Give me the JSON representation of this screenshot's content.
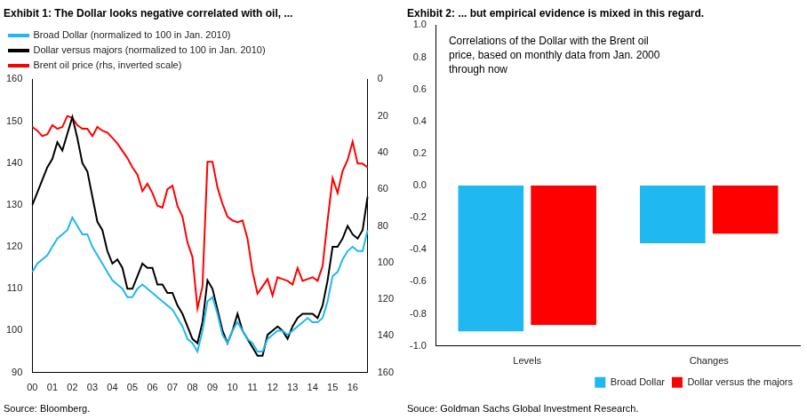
{
  "chart_data": [
    {
      "type": "line",
      "title": "Exhibit 1: The Dollar looks negative correlated with oil, ...",
      "source": "Source: Bloomberg.",
      "categories": [
        "00",
        null,
        null,
        null,
        "01",
        null,
        null,
        null,
        "02",
        null,
        null,
        null,
        "03",
        null,
        null,
        null,
        "04",
        null,
        null,
        null,
        "05",
        null,
        null,
        null,
        "06",
        null,
        null,
        null,
        "07",
        null,
        null,
        null,
        "08",
        null,
        null,
        null,
        "09",
        null,
        null,
        null,
        "10",
        null,
        null,
        null,
        "11",
        null,
        null,
        null,
        "12",
        null,
        null,
        null,
        "13",
        null,
        null,
        null,
        "14",
        null,
        null,
        null,
        "15",
        null,
        null,
        null,
        "16",
        null,
        null,
        null
      ],
      "series": [
        {
          "name": "Broad Dollar (normalized to 100 in Jan. 2010)",
          "color": "#1fb8f0",
          "axis": "y",
          "values": [
            114,
            116,
            117,
            118,
            120,
            122,
            123,
            124,
            127,
            125,
            123,
            123,
            120,
            118,
            116,
            114,
            112,
            111,
            110,
            108,
            108,
            110,
            111,
            110,
            109,
            108,
            107,
            106,
            105,
            103,
            101,
            98,
            97,
            95,
            100,
            107,
            108,
            104,
            99,
            97,
            100,
            102,
            100,
            98,
            97,
            95,
            95,
            98,
            99,
            100,
            100,
            99,
            100,
            101,
            102,
            103,
            102,
            102,
            103,
            107,
            113,
            114,
            117,
            119,
            120,
            119,
            119,
            124
          ]
        },
        {
          "name": "Dollar versus majors (normalized to 100 in Jan. 2010)",
          "color": "#000000",
          "axis": "y",
          "values": [
            130,
            133,
            136,
            139,
            141,
            145,
            143,
            147,
            151,
            146,
            140,
            138,
            132,
            126,
            124,
            119,
            116,
            117,
            115,
            110,
            110,
            113,
            116,
            115,
            115,
            111,
            111,
            109,
            109,
            106,
            104,
            101,
            98,
            97,
            102,
            112,
            110,
            105,
            100,
            97,
            100,
            104,
            100,
            98,
            96,
            94,
            94,
            99,
            100,
            101,
            100,
            98,
            101,
            103,
            104,
            104,
            104,
            103,
            106,
            112,
            120,
            120,
            122,
            125,
            123,
            122,
            124,
            132
          ]
        },
        {
          "name": "Brent oil price (rhs, inverted scale)",
          "color": "#ff0000",
          "axis": "y2",
          "values": [
            26,
            28,
            31,
            30,
            25,
            27,
            26,
            20,
            21,
            25,
            27,
            27,
            31,
            26,
            28,
            29,
            32,
            35,
            39,
            43,
            48,
            52,
            61,
            57,
            62,
            69,
            70,
            60,
            58,
            69,
            75,
            89,
            97,
            125,
            113,
            45,
            45,
            59,
            68,
            75,
            77,
            78,
            77,
            87,
            105,
            117,
            113,
            109,
            118,
            108,
            109,
            110,
            112,
            103,
            110,
            109,
            108,
            110,
            102,
            77,
            54,
            62,
            50,
            44,
            34,
            46,
            46,
            48
          ]
        }
      ],
      "ylim": [
        90,
        160
      ],
      "yticks": [
        90,
        100,
        110,
        120,
        130,
        140,
        150,
        160
      ],
      "y2lim": [
        160,
        0
      ],
      "y2ticks": [
        0,
        20,
        40,
        60,
        80,
        100,
        120,
        140,
        160
      ],
      "grid": false,
      "legend": "upper left"
    },
    {
      "type": "bar",
      "title": "Exhibit 2: ... but empirical evidence is mixed in this regard.",
      "source": "Souce: Goldman Sachs Global Investment Research.",
      "annotation": [
        "Correlations of the Dollar with the Brent oil",
        "price, based on monthly data from Jan. 2000",
        "through now"
      ],
      "categories": [
        "Levels",
        "Changes"
      ],
      "series": [
        {
          "name": "Broad Dollar",
          "color": "#1fb8f0",
          "values": [
            -0.91,
            -0.36
          ]
        },
        {
          "name": "Dollar versus the majors",
          "color": "#ff0000",
          "values": [
            -0.87,
            -0.3
          ]
        }
      ],
      "ylim": [
        -1,
        1
      ],
      "yticks": [
        {
          "value": -1,
          "label": "-1.0"
        },
        {
          "value": -0.8,
          "label": "-0.8"
        },
        {
          "value": -0.6,
          "label": "-0.6"
        },
        {
          "value": -0.4,
          "label": "-0.4"
        },
        {
          "value": -0.2,
          "label": "-0.2"
        },
        {
          "value": 0,
          "label": "0.0"
        },
        {
          "value": 0.2,
          "label": "0.2"
        },
        {
          "value": 0.4,
          "label": "0.4"
        },
        {
          "value": 0.6,
          "label": "0.6"
        },
        {
          "value": 0.8,
          "label": "0.8"
        },
        {
          "value": 1,
          "label": "1.0"
        }
      ],
      "grid": false,
      "legend": "lower right"
    }
  ]
}
